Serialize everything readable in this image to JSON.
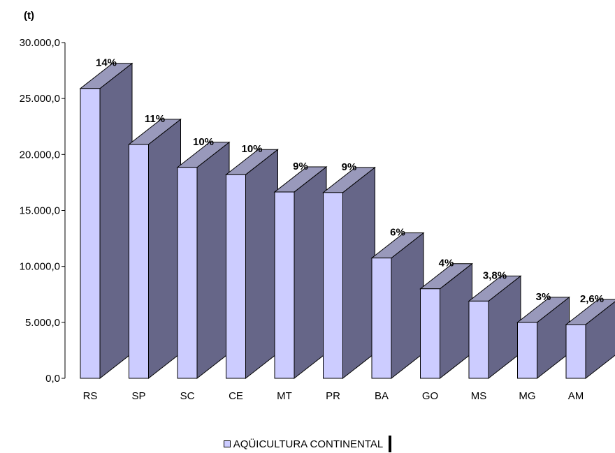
{
  "chart_data": {
    "type": "bar",
    "unit": "(t)",
    "categories": [
      "RS",
      "SP",
      "SC",
      "CE",
      "MT",
      "PR",
      "BA",
      "GO",
      "MS",
      "MG",
      "AM"
    ],
    "series": [
      {
        "name": "AQÜICULTURA CONTINENTAL",
        "values": [
          25900,
          20900,
          18850,
          18200,
          16650,
          16600,
          10750,
          8000,
          6900,
          5000,
          4800
        ],
        "labels": [
          "14%",
          "11%",
          "10%",
          "10%",
          "9%",
          "9%",
          "6%",
          "4%",
          "3,8%",
          "3%",
          "2,6%"
        ]
      }
    ],
    "y_ticks": [
      "0,0",
      "5.000,0",
      "10.000,0",
      "15.000,0",
      "20.000,0",
      "25.000,0",
      "30.000,0"
    ],
    "ylim": [
      0,
      30000
    ],
    "grid": false,
    "legend_position": "bottom",
    "colors": {
      "front": "#ccccff",
      "side": "#666688",
      "top": "#9999bb",
      "stroke": "#000000"
    }
  }
}
